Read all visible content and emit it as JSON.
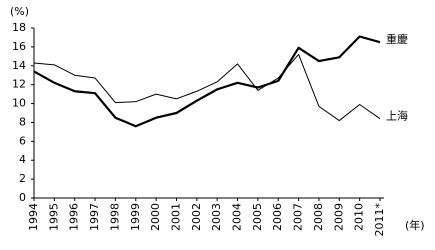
{
  "chart_data": {
    "type": "line",
    "ylabel": "(%)",
    "xlabel": "(年)",
    "categories": [
      "1994",
      "1995",
      "1996",
      "1997",
      "1998",
      "1999",
      "2000",
      "2001",
      "2002",
      "2003",
      "2004",
      "2005",
      "2006",
      "2007",
      "2008",
      "2009",
      "2010",
      "2011*"
    ],
    "series": [
      {
        "name": "重慶",
        "color": "#000000",
        "width": 2.2,
        "values": [
          13.4,
          12.2,
          11.3,
          11.1,
          8.5,
          7.6,
          8.5,
          9.0,
          10.3,
          11.5,
          12.2,
          11.7,
          12.4,
          15.9,
          14.5,
          14.9,
          17.1,
          16.5
        ]
      },
      {
        "name": "上海",
        "color": "#000000",
        "width": 1,
        "values": [
          14.3,
          14.1,
          13.0,
          12.7,
          10.1,
          10.2,
          11.0,
          10.5,
          11.3,
          12.3,
          14.2,
          11.4,
          12.7,
          15.2,
          9.7,
          8.2,
          9.9,
          8.4
        ]
      }
    ],
    "ylim": [
      0,
      18
    ],
    "yticks": [
      0,
      2,
      4,
      6,
      8,
      10,
      12,
      14,
      16,
      18
    ],
    "grid": false
  }
}
